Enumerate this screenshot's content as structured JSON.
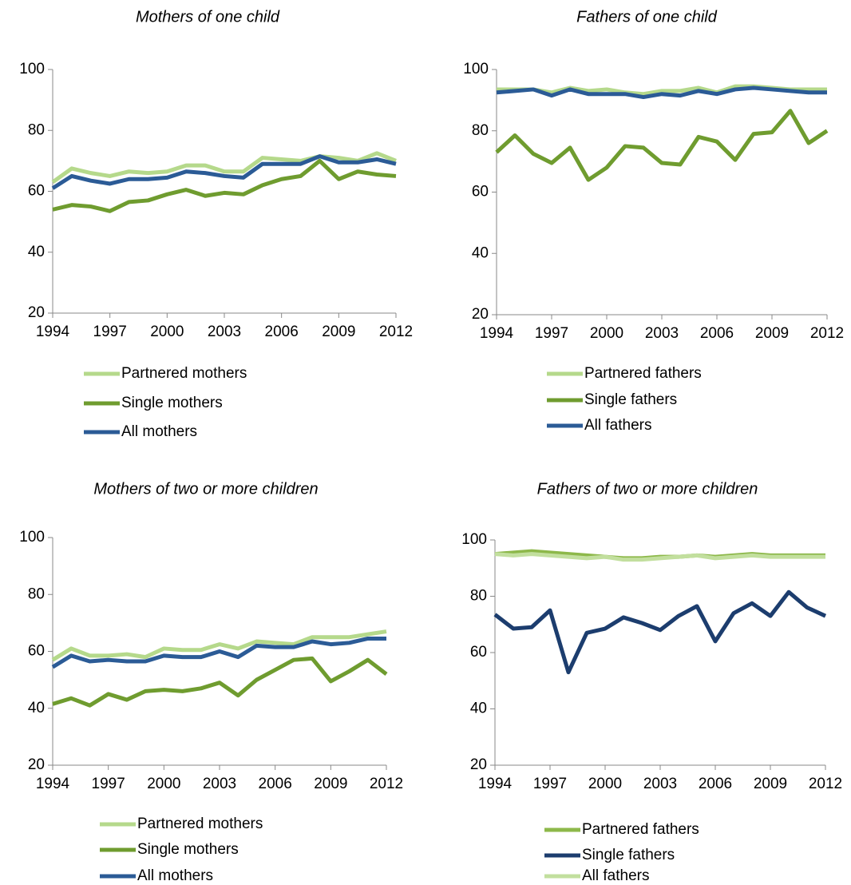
{
  "chart_data": [
    {
      "type": "line",
      "title": "Mothers of one child",
      "x": [
        1994,
        1995,
        1996,
        1997,
        1998,
        1999,
        2000,
        2001,
        2002,
        2003,
        2004,
        2005,
        2006,
        2007,
        2008,
        2009,
        2010,
        2011,
        2012
      ],
      "xlim": [
        1994,
        2012
      ],
      "xticks": [
        1994,
        1997,
        2000,
        2003,
        2006,
        2009,
        2012
      ],
      "ylim": [
        20,
        100
      ],
      "yticks": [
        20,
        40,
        60,
        80,
        100
      ],
      "series": [
        {
          "name": "Partnered mothers",
          "color": "#b5d98b",
          "values": [
            63,
            67.5,
            66,
            65,
            66.5,
            66,
            66.5,
            68.5,
            68.5,
            66.5,
            66.5,
            71,
            70.5,
            70,
            71.5,
            71,
            70,
            72.5,
            70
          ]
        },
        {
          "name": "Single mothers",
          "color": "#6f9c2f",
          "values": [
            54,
            55.5,
            55,
            53.5,
            56.5,
            57,
            59,
            60.5,
            58.5,
            59.5,
            59,
            62,
            64,
            65,
            70,
            64,
            66.5,
            65.5,
            65
          ]
        },
        {
          "name": "All mothers",
          "color": "#2b5b96",
          "values": [
            61,
            65,
            63.5,
            62.5,
            64,
            64,
            64.5,
            66.5,
            66,
            65,
            64.5,
            69,
            69,
            69,
            71.5,
            69.5,
            69.5,
            70.5,
            69
          ]
        }
      ]
    },
    {
      "type": "line",
      "title": "Fathers of one child",
      "x": [
        1994,
        1995,
        1996,
        1997,
        1998,
        1999,
        2000,
        2001,
        2002,
        2003,
        2004,
        2005,
        2006,
        2007,
        2008,
        2009,
        2010,
        2011,
        2012
      ],
      "xlim": [
        1994,
        2012
      ],
      "xticks": [
        1994,
        1997,
        2000,
        2003,
        2006,
        2009,
        2012
      ],
      "ylim": [
        20,
        100
      ],
      "yticks": [
        20,
        40,
        60,
        80,
        100
      ],
      "series": [
        {
          "name": "Partnered fathers",
          "color": "#b5d98b",
          "values": [
            93.5,
            93.5,
            93.5,
            92.5,
            94,
            93,
            93.5,
            92.5,
            92,
            93,
            93,
            94,
            92.5,
            94.5,
            94.5,
            94,
            93.5,
            93.5,
            93.5
          ]
        },
        {
          "name": "Single fathers",
          "color": "#6f9c2f",
          "values": [
            73,
            78.5,
            72.5,
            69.5,
            74.5,
            64,
            68,
            75,
            74.5,
            69.5,
            69,
            78,
            76.5,
            70.5,
            79,
            79.5,
            86.5,
            76,
            80
          ]
        },
        {
          "name": "All fathers",
          "color": "#2b5b96",
          "values": [
            92.5,
            93,
            93.5,
            91.5,
            93.5,
            92,
            92,
            92,
            91,
            92,
            91.5,
            93,
            92,
            93.5,
            94,
            93.5,
            93,
            92.5,
            92.5
          ]
        }
      ]
    },
    {
      "type": "line",
      "title": "Mothers of two or more children",
      "x": [
        1994,
        1995,
        1996,
        1997,
        1998,
        1999,
        2000,
        2001,
        2002,
        2003,
        2004,
        2005,
        2006,
        2007,
        2008,
        2009,
        2010,
        2011,
        2012
      ],
      "xlim": [
        1994,
        2012
      ],
      "xticks": [
        1994,
        1997,
        2000,
        2003,
        2006,
        2009,
        2012
      ],
      "ylim": [
        20,
        100
      ],
      "yticks": [
        20,
        40,
        60,
        80,
        100
      ],
      "series": [
        {
          "name": "Partnered mothers",
          "color": "#b5d98b",
          "values": [
            57,
            61,
            58.5,
            58.5,
            59,
            58,
            61,
            60.5,
            60.5,
            62.5,
            61,
            63.5,
            63,
            62.5,
            65,
            65,
            65,
            66,
            67
          ]
        },
        {
          "name": "Single mothers",
          "color": "#6f9c2f",
          "values": [
            41.5,
            43.5,
            41,
            45,
            43,
            46,
            46.5,
            46,
            47,
            49,
            44.5,
            50,
            53.5,
            57,
            57.5,
            49.5,
            53,
            57,
            52
          ]
        },
        {
          "name": "All mothers",
          "color": "#2b5b96",
          "values": [
            54.5,
            58.5,
            56.5,
            57,
            56.5,
            56.5,
            58.5,
            58,
            58,
            60,
            58,
            62,
            61.5,
            61.5,
            63.5,
            62.5,
            63,
            64.5,
            64.5
          ]
        }
      ]
    },
    {
      "type": "line",
      "title": "Fathers of two or more children",
      "x": [
        1994,
        1995,
        1996,
        1997,
        1998,
        1999,
        2000,
        2001,
        2002,
        2003,
        2004,
        2005,
        2006,
        2007,
        2008,
        2009,
        2010,
        2011,
        2012
      ],
      "xlim": [
        1994,
        2012
      ],
      "xticks": [
        1994,
        1997,
        2000,
        2003,
        2006,
        2009,
        2012
      ],
      "ylim": [
        20,
        100
      ],
      "yticks": [
        20,
        40,
        60,
        80,
        100
      ],
      "series": [
        {
          "name": "Partnered fathers",
          "color": "#8db84a",
          "values": [
            95,
            95.5,
            96,
            95.5,
            95,
            94.5,
            94,
            93.5,
            93.5,
            94,
            94,
            94.5,
            94,
            94.5,
            95,
            94.5,
            94.5,
            94.5,
            94.5
          ]
        },
        {
          "name": "Single fathers",
          "color": "#1c3d6e",
          "values": [
            73.5,
            68.5,
            69,
            75,
            53,
            67,
            68.5,
            72.5,
            70.5,
            68,
            73,
            76.5,
            64,
            74,
            77.5,
            73,
            81.5,
            76,
            73
          ]
        },
        {
          "name": "All fathers",
          "color": "#c2df9e",
          "values": [
            95,
            94.5,
            95,
            94.5,
            94,
            93.5,
            94,
            93,
            93,
            93.5,
            94,
            94.5,
            93.5,
            94,
            94.5,
            94,
            94,
            94,
            94
          ]
        }
      ]
    }
  ]
}
